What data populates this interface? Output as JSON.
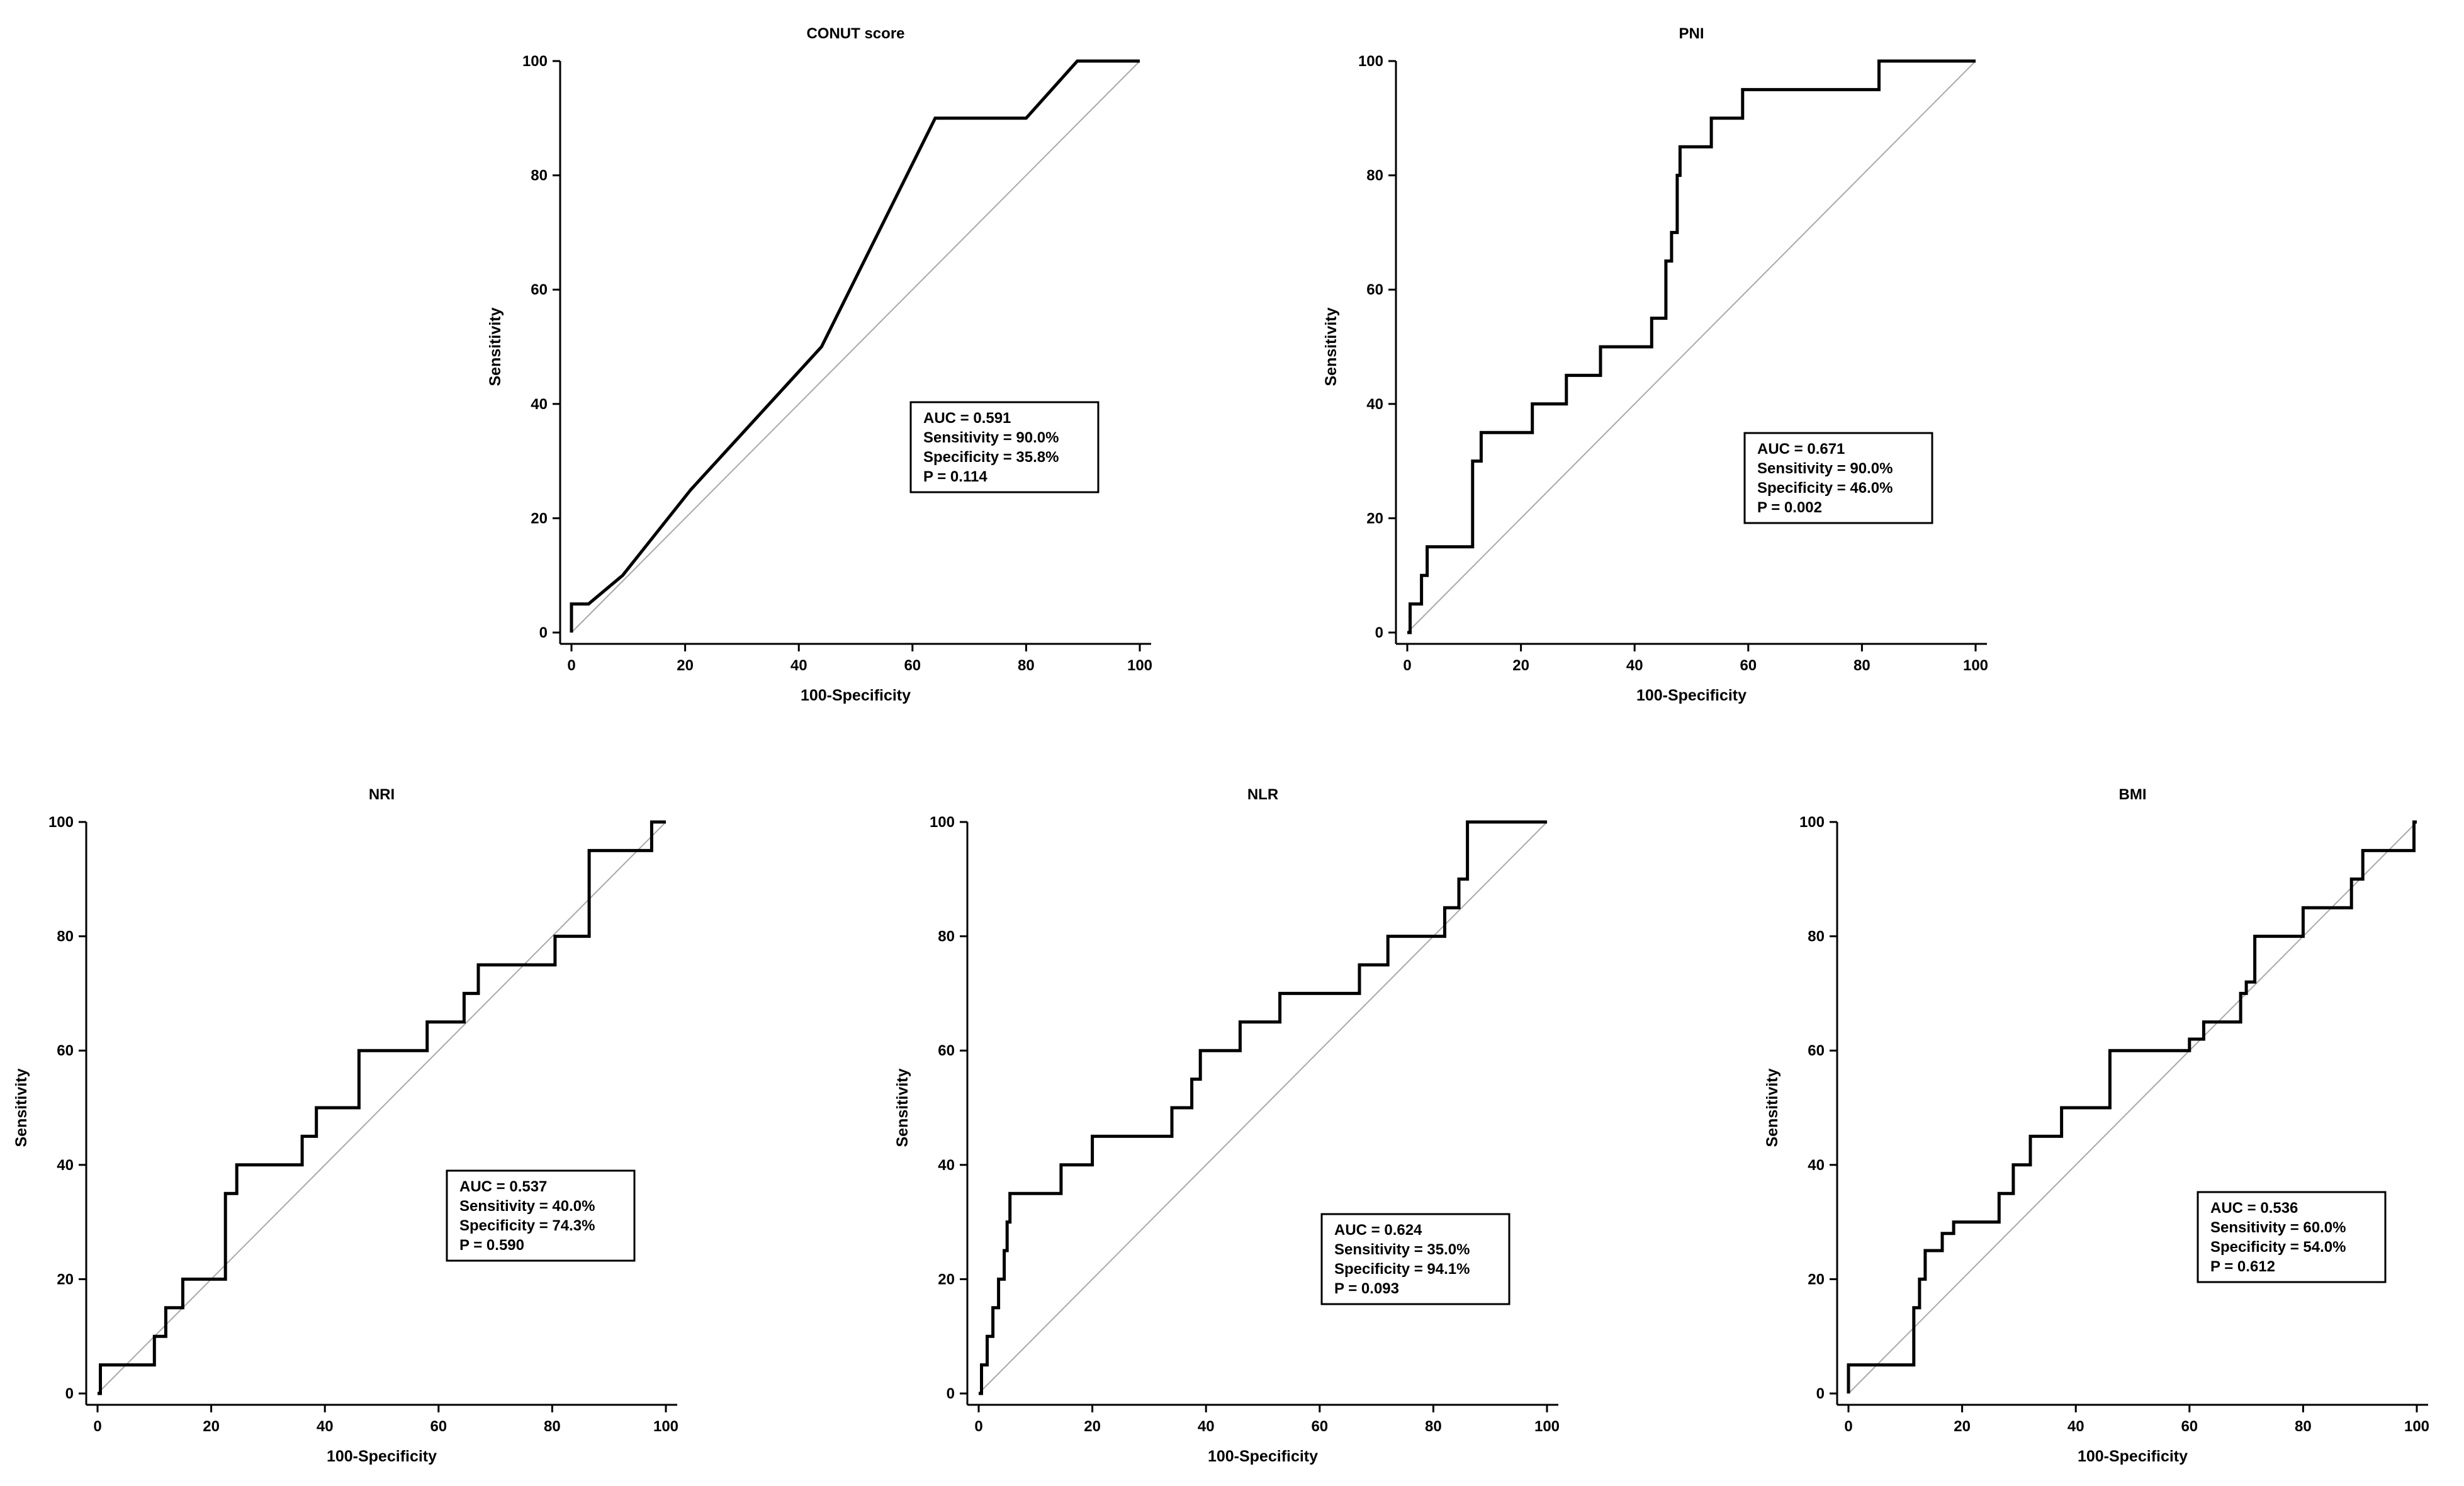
{
  "chart_data": [
    {
      "type": "line",
      "title": "CONUT score",
      "xlabel": "100-Specificity",
      "ylabel": "Sensitivity",
      "xlim": [
        0,
        100
      ],
      "ylim": [
        0,
        100
      ],
      "xticks": [
        "0",
        "20",
        "40",
        "60",
        "80",
        "100"
      ],
      "yticks": [
        "0",
        "20",
        "40",
        "60",
        "80",
        "100"
      ],
      "reference_line": "diagonal",
      "series": [
        {
          "name": "ROC",
          "x": [
            0,
            0,
            3,
            9,
            21,
            44,
            64,
            80,
            89,
            100
          ],
          "y": [
            0,
            5,
            5,
            10,
            25,
            50,
            90,
            90,
            100,
            100
          ]
        }
      ],
      "annotation": [
        "AUC = 0.591",
        "Sensitivity = 90.0%",
        "Specificity = 35.8%",
        "P = 0.114"
      ],
      "annotation_position": "center-right"
    },
    {
      "type": "line",
      "title": "PNI",
      "xlabel": "100-Specificity",
      "ylabel": "Sensitivity",
      "xlim": [
        0,
        100
      ],
      "ylim": [
        0,
        100
      ],
      "xticks": [
        "0",
        "20",
        "40",
        "60",
        "80",
        "100"
      ],
      "yticks": [
        "0",
        "20",
        "40",
        "60",
        "80",
        "100"
      ],
      "reference_line": "diagonal",
      "series": [
        {
          "name": "ROC",
          "x": [
            0,
            0.5,
            0.5,
            2.5,
            2.5,
            3.5,
            3.5,
            11.5,
            11.5,
            13,
            13,
            22,
            22,
            28,
            28,
            34,
            34,
            43,
            43,
            45.5,
            45.5,
            46.5,
            46.5,
            47.5,
            47.5,
            48,
            48,
            48.5,
            48.5,
            53.5,
            53.5,
            59,
            59,
            83,
            83,
            100
          ],
          "y": [
            0,
            0,
            5,
            5,
            10,
            10,
            15,
            15,
            30,
            30,
            35,
            35,
            40,
            40,
            45,
            45,
            50,
            50,
            55,
            55,
            65,
            65,
            70,
            70,
            80,
            80,
            85,
            85,
            85,
            85,
            90,
            90,
            95,
            95,
            100,
            100
          ]
        }
      ],
      "annotation": [
        "AUC = 0.671",
        "Sensitivity = 90.0%",
        "Specificity = 46.0%",
        "P = 0.002"
      ],
      "annotation_position": "center-right"
    },
    {
      "type": "line",
      "title": "NRI",
      "xlabel": "100-Specificity",
      "ylabel": "Sensitivity",
      "xlim": [
        0,
        100
      ],
      "ylim": [
        0,
        100
      ],
      "xticks": [
        "0",
        "20",
        "40",
        "60",
        "80",
        "100"
      ],
      "yticks": [
        "0",
        "20",
        "40",
        "60",
        "80",
        "100"
      ],
      "reference_line": "diagonal",
      "series": [
        {
          "name": "ROC",
          "x": [
            0,
            0.5,
            0.5,
            10,
            10,
            12,
            12,
            15,
            15,
            22.5,
            22.5,
            24.5,
            24.5,
            36,
            36,
            38.5,
            38.5,
            46,
            46,
            58,
            58,
            64.5,
            64.5,
            67,
            67,
            80.5,
            80.5,
            86.5,
            86.5,
            97.5,
            97.5,
            100
          ],
          "y": [
            0,
            0,
            5,
            5,
            10,
            10,
            15,
            15,
            20,
            20,
            35,
            35,
            40,
            40,
            45,
            45,
            50,
            50,
            60,
            60,
            65,
            65,
            70,
            70,
            75,
            75,
            80,
            80,
            95,
            95,
            100,
            100
          ]
        }
      ],
      "annotation": [
        "AUC = 0.537",
        "Sensitivity = 40.0%",
        "Specificity = 74.3%",
        "P = 0.590"
      ],
      "annotation_position": "center-right"
    },
    {
      "type": "line",
      "title": "NLR",
      "xlabel": "100-Specificity",
      "ylabel": "Sensitivity",
      "xlim": [
        0,
        100
      ],
      "ylim": [
        0,
        100
      ],
      "xticks": [
        "0",
        "20",
        "40",
        "60",
        "80",
        "100"
      ],
      "yticks": [
        "0",
        "20",
        "40",
        "60",
        "80",
        "100"
      ],
      "reference_line": "diagonal",
      "series": [
        {
          "name": "ROC",
          "x": [
            0,
            0.5,
            0.5,
            1.5,
            1.5,
            2.5,
            2.5,
            3.5,
            3.5,
            4.5,
            4.5,
            5,
            5,
            5.5,
            5.5,
            14.5,
            14.5,
            20,
            20,
            34,
            34,
            37.5,
            37.5,
            39,
            39,
            46,
            46,
            53,
            53,
            67,
            67,
            72,
            72,
            82,
            82,
            84.5,
            84.5,
            86,
            86,
            100
          ],
          "y": [
            0,
            0,
            5,
            5,
            10,
            10,
            15,
            15,
            20,
            20,
            25,
            25,
            30,
            30,
            35,
            35,
            40,
            40,
            45,
            45,
            50,
            50,
            55,
            55,
            60,
            60,
            65,
            65,
            70,
            70,
            75,
            75,
            80,
            80,
            85,
            85,
            90,
            90,
            100,
            100
          ]
        }
      ],
      "annotation": [
        "AUC = 0.624",
        "Sensitivity = 35.0%",
        "Specificity = 94.1%",
        "P = 0.093"
      ],
      "annotation_position": "center-right"
    },
    {
      "type": "line",
      "title": "BMI",
      "xlabel": "100-Specificity",
      "ylabel": "Sensitivity",
      "xlim": [
        0,
        100
      ],
      "ylim": [
        0,
        100
      ],
      "xticks": [
        "0",
        "20",
        "40",
        "60",
        "80",
        "100"
      ],
      "yticks": [
        "0",
        "20",
        "40",
        "60",
        "80",
        "100"
      ],
      "reference_line": "diagonal",
      "series": [
        {
          "name": "ROC",
          "x": [
            0,
            0,
            0.5,
            11.5,
            11.5,
            12.5,
            12.5,
            13.5,
            13.5,
            16.5,
            16.5,
            18.5,
            18.5,
            26.5,
            26.5,
            29,
            29,
            32,
            32,
            37.5,
            37.5,
            42,
            42,
            46,
            46,
            60,
            60,
            62.5,
            62.5,
            69,
            69,
            70,
            70,
            71.5,
            71.5,
            74,
            74,
            80,
            80,
            82.5,
            82.5,
            88.5,
            88.5,
            90.5,
            90.5,
            92,
            92,
            99.5,
            99.5,
            100
          ],
          "y": [
            0,
            5,
            5,
            5,
            15,
            15,
            20,
            20,
            25,
            25,
            28,
            28,
            30,
            30,
            35,
            35,
            40,
            40,
            45,
            45,
            50,
            50,
            50,
            50,
            60,
            60,
            62,
            62,
            65,
            65,
            70,
            70,
            72,
            72,
            80,
            80,
            80,
            80,
            85,
            85,
            85,
            85,
            90,
            90,
            95,
            95,
            95,
            95,
            100,
            100
          ]
        }
      ],
      "annotation": [
        "AUC = 0.536",
        "Sensitivity = 60.0%",
        "Specificity = 54.0%",
        "P = 0.612"
      ],
      "annotation_position": "center-right"
    }
  ]
}
